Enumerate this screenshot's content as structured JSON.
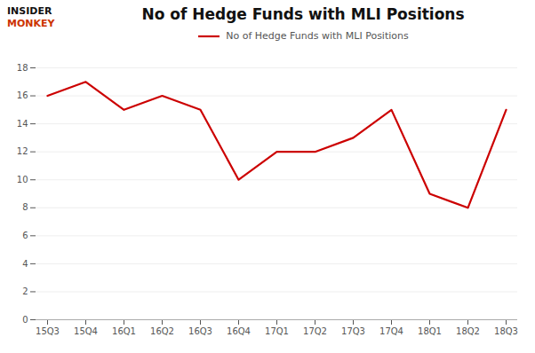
{
  "chart_data": {
    "type": "line",
    "title": "No of Hedge Funds with MLI Positions",
    "categories": [
      "15Q3",
      "15Q4",
      "16Q1",
      "16Q2",
      "16Q3",
      "16Q4",
      "17Q1",
      "17Q2",
      "17Q3",
      "17Q4",
      "18Q1",
      "18Q2",
      "18Q3"
    ],
    "series": [
      {
        "name": "No of Hedge Funds with MLI Positions",
        "color": "#cc0000",
        "values": [
          16,
          17,
          15,
          16,
          15,
          10,
          12,
          12,
          13,
          15,
          9,
          8,
          15
        ]
      }
    ],
    "ylim": [
      0,
      18
    ],
    "yticks": [
      0,
      2,
      4,
      6,
      8,
      10,
      12,
      14,
      16,
      18
    ],
    "grid": true,
    "legend": "top",
    "annotations": [
      {
        "text": "INSIDER",
        "color": "#111111"
      },
      {
        "text": "MONKEY",
        "color": "#cc3300"
      }
    ]
  }
}
